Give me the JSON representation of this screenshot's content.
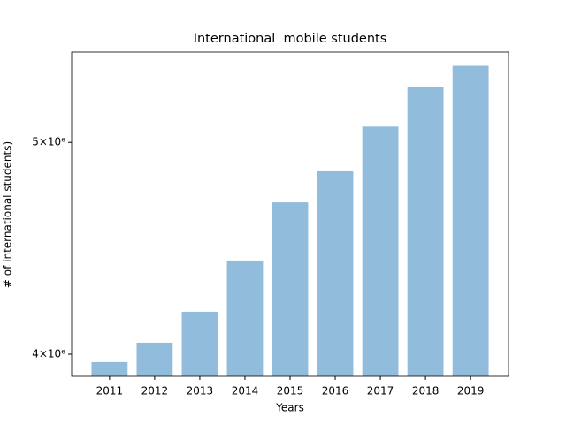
{
  "chart_data": {
    "type": "bar",
    "title": "International  mobile students",
    "xlabel": "Years",
    "ylabel": "# of international students)",
    "categories": [
      "2011",
      "2012",
      "2013",
      "2014",
      "2015",
      "2016",
      "2017",
      "2018",
      "2019"
    ],
    "values": [
      3967000,
      4049000,
      4183000,
      4415000,
      4694000,
      4850000,
      5084000,
      5301000,
      5420000
    ],
    "color": "#92bcdc",
    "log_y": true,
    "ylim": [
      3908000,
      5499000
    ],
    "yticks": [
      {
        "value": 4000000,
        "label": "4×10⁶"
      },
      {
        "value": 5000000,
        "label": "5×10⁶"
      }
    ]
  }
}
